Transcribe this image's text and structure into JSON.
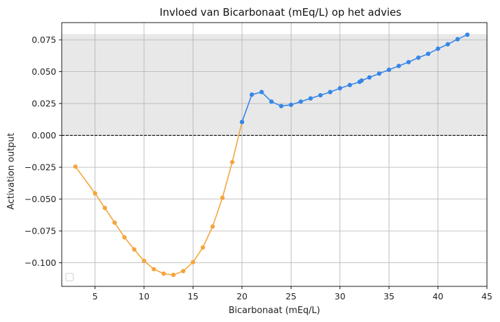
{
  "chart_data": {
    "type": "line",
    "title": "Invloed van Bicarbonaat (mEq/L) op het advies",
    "xlabel": "Bicarbonaat (mEq/L)",
    "ylabel": "Activation output",
    "xlim": [
      1.6,
      45
    ],
    "ylim": [
      -0.1185,
      0.0885
    ],
    "xticks": [
      5,
      10,
      15,
      20,
      25,
      30,
      35,
      40,
      45
    ],
    "yticks": [
      -0.1,
      -0.075,
      -0.05,
      -0.025,
      0.0,
      0.025,
      0.05,
      0.075
    ],
    "ytick_labels": [
      "−0.100",
      "−0.075",
      "−0.050",
      "−0.025",
      "0.000",
      "0.025",
      "0.050",
      "0.075"
    ],
    "xtick_labels": [
      "5",
      "10",
      "15",
      "20",
      "25",
      "30",
      "35",
      "40",
      "45"
    ],
    "grid": true,
    "legend": "lower-left",
    "shaded_band": {
      "y0": 0.0,
      "y1": 0.0795,
      "color": "#e8e8e8"
    },
    "reference_line": {
      "y": 0.0,
      "style": "dashed",
      "color": "#000000"
    },
    "colors": {
      "negative": "#f4a53c",
      "positive": "#3586e8"
    },
    "x": [
      3,
      5,
      6,
      7,
      8,
      9,
      10,
      11,
      12,
      13,
      14,
      15,
      16,
      17,
      18,
      19,
      20,
      21,
      22,
      23,
      24,
      25,
      26,
      27,
      28,
      29,
      30,
      31,
      32,
      32.2,
      33,
      34,
      35,
      36,
      37,
      38,
      39,
      40,
      41,
      42,
      43
    ],
    "y": [
      -0.0245,
      -0.0455,
      -0.057,
      -0.0685,
      -0.08,
      -0.0895,
      -0.0985,
      -0.105,
      -0.1085,
      -0.1095,
      -0.1065,
      -0.0995,
      -0.088,
      -0.0715,
      -0.049,
      -0.021,
      0.0105,
      0.032,
      0.034,
      0.0265,
      0.023,
      0.024,
      0.0265,
      0.029,
      0.0315,
      0.034,
      0.037,
      0.0395,
      0.042,
      0.043,
      0.0455,
      0.0485,
      0.0515,
      0.0545,
      0.0575,
      0.061,
      0.064,
      0.068,
      0.0715,
      0.0755,
      0.079
    ]
  }
}
